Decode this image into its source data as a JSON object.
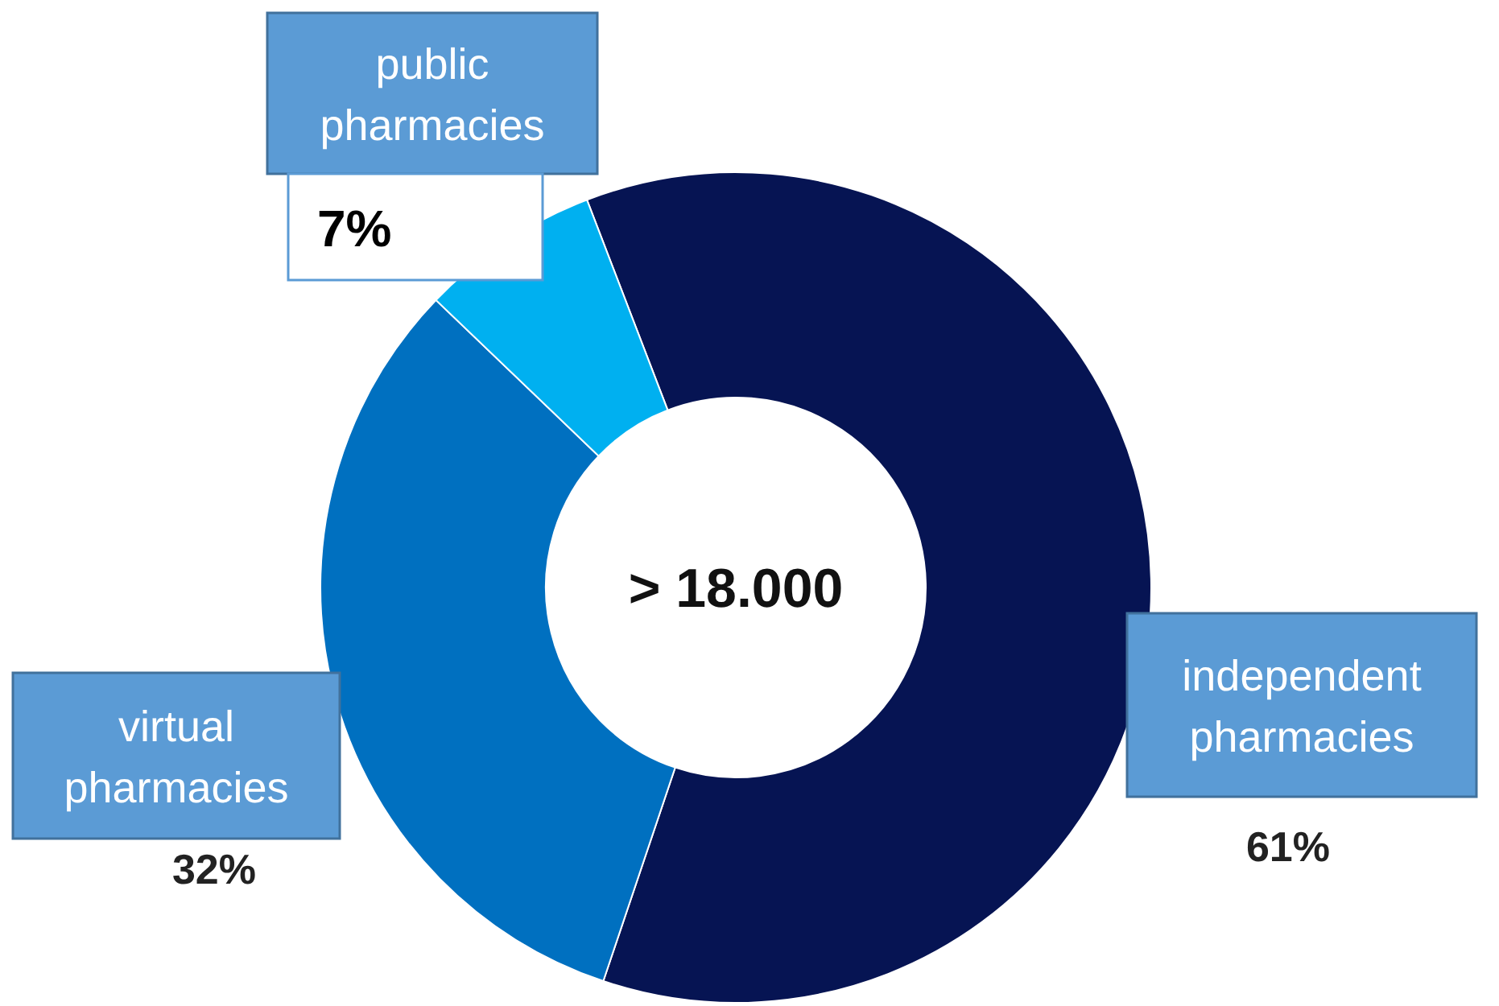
{
  "chart_data": {
    "type": "donut",
    "categories": [
      "independent pharmacies",
      "virtual pharmacies",
      "public pharmacies"
    ],
    "values": [
      61,
      32,
      7
    ],
    "colors": [
      "#061453",
      "#0070c0",
      "#00b0f0"
    ],
    "value_labels": [
      "61%",
      "32%",
      "7%"
    ],
    "annotations": [
      "> 18.000"
    ]
  }
}
